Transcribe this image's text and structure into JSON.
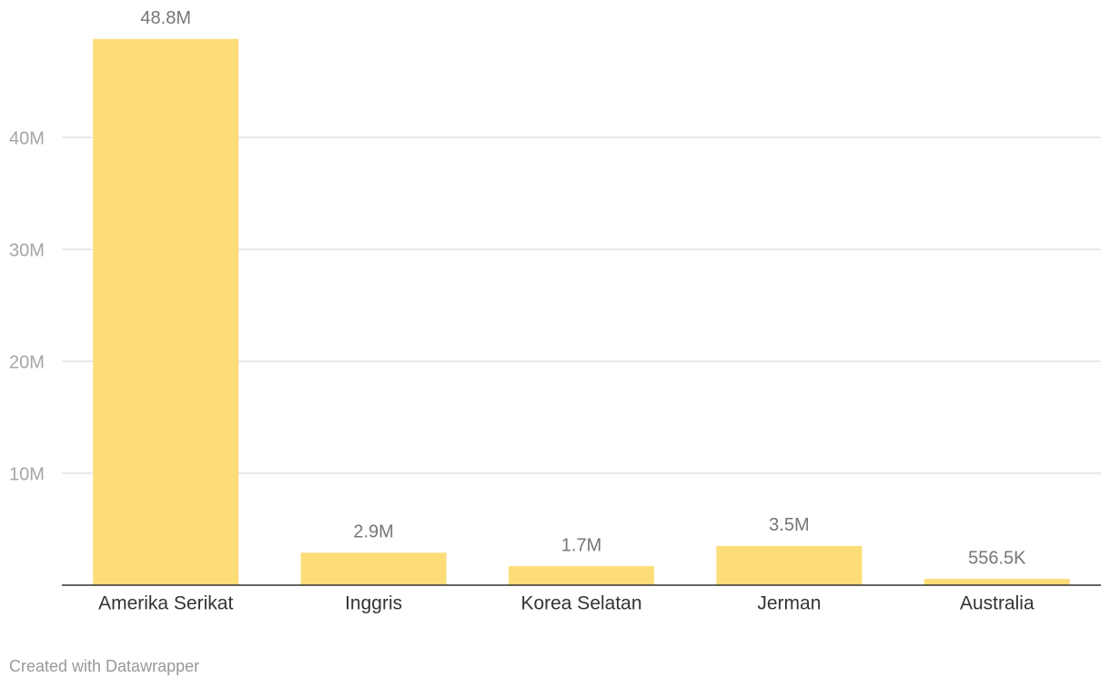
{
  "chart_data": {
    "type": "bar",
    "categories": [
      "Amerika Serikat",
      "Inggris",
      "Korea Selatan",
      "Jerman",
      "Australia"
    ],
    "values": [
      48800000,
      2900000,
      1700000,
      3500000,
      556500
    ],
    "value_labels": [
      "48.8M",
      "2.9M",
      "1.7M",
      "3.5M",
      "556.5K"
    ],
    "color": "#fddd78",
    "ylim": [
      0,
      50000000
    ],
    "yticks": [
      {
        "value": 10000000,
        "label": "10M"
      },
      {
        "value": 20000000,
        "label": "20M"
      },
      {
        "value": 30000000,
        "label": "30M"
      },
      {
        "value": 40000000,
        "label": "40M"
      }
    ],
    "grid": true
  },
  "footer": {
    "credit": "Created with Datawrapper"
  }
}
